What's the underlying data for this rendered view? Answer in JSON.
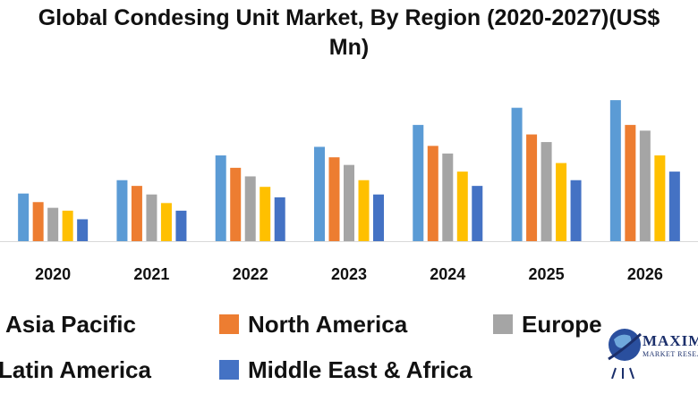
{
  "chart_data": {
    "type": "bar",
    "title_line1": "Global Condesing Unit Market, By Region (2020-2027)(US$",
    "title_line2": "Mn)",
    "categories": [
      "2020",
      "2021",
      "2022",
      "2023",
      "2024",
      "2025",
      "2026"
    ],
    "series": [
      {
        "name": "Asia Pacific",
        "color": "#5b9bd5",
        "values": [
          50,
          64,
          90,
          99,
          122,
          140,
          148
        ]
      },
      {
        "name": "North America",
        "color": "#ed7d31",
        "values": [
          41,
          58,
          77,
          88,
          100,
          112,
          122
        ]
      },
      {
        "name": "Europe",
        "color": "#a5a5a5",
        "values": [
          35,
          49,
          68,
          80,
          92,
          104,
          116
        ]
      },
      {
        "name": "Latin America",
        "color": "#ffc000",
        "values": [
          32,
          40,
          57,
          64,
          73,
          82,
          90
        ]
      },
      {
        "name": "Middle East & Africa",
        "color": "#4472c4",
        "values": [
          23,
          32,
          46,
          49,
          58,
          64,
          73
        ]
      }
    ],
    "ylim": [
      0,
      150
    ],
    "grid": false,
    "legend_position": "bottom"
  },
  "logo": {
    "text": "MAXIMIZE",
    "subtext": "MARKET RESEARCH"
  }
}
